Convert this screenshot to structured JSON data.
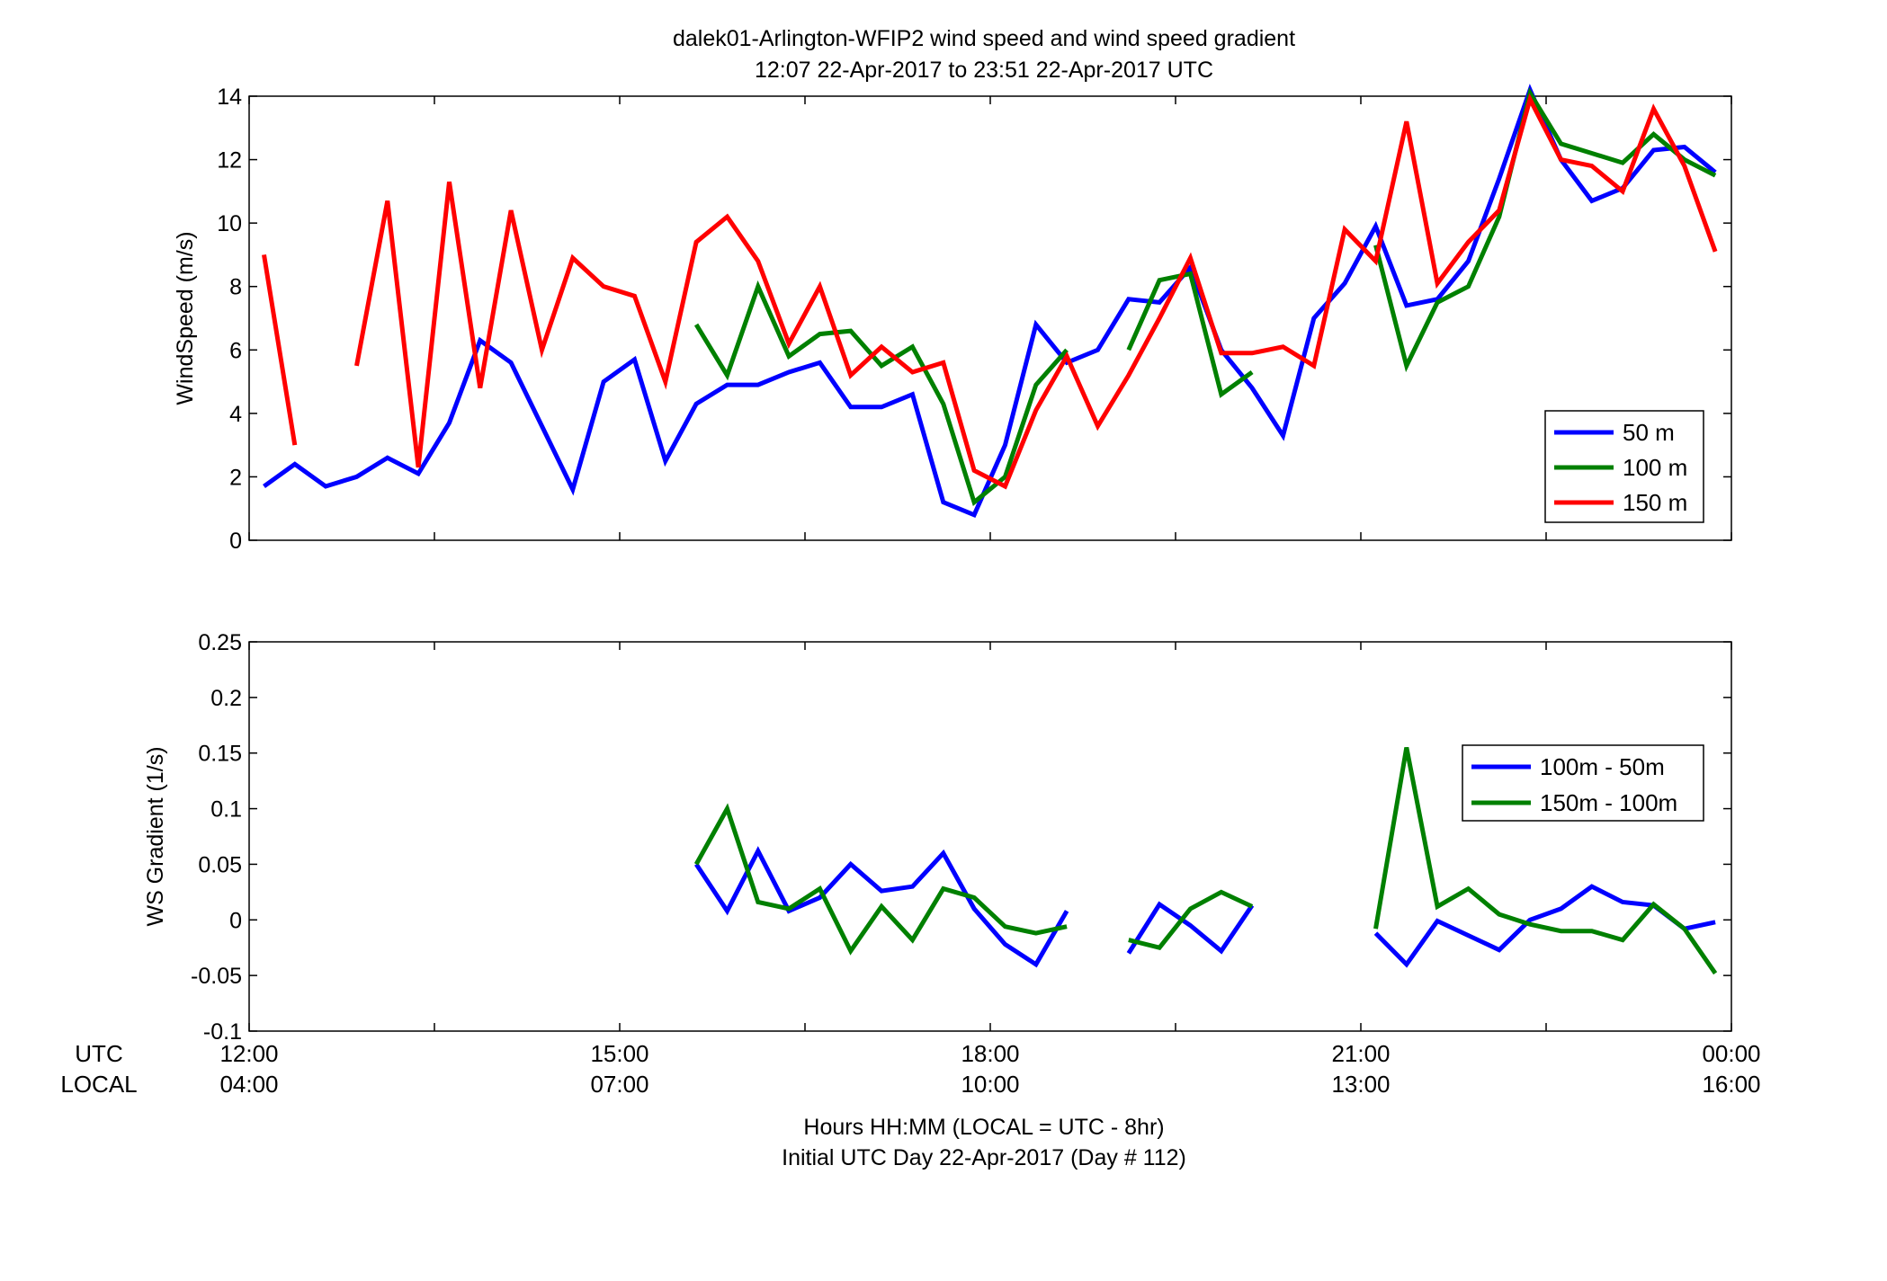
{
  "figure": {
    "title_line1": "dalek01-Arlington-WFIP2  wind speed and wind speed gradient",
    "title_line2": "12:07 22-Apr-2017 to 23:51 22-Apr-2017  UTC",
    "xlabel_line1": "Hours HH:MM  (LOCAL = UTC - 8hr)",
    "xlabel_line2": "Initial UTC Day 22-Apr-2017 (Day # 112)",
    "utc_label": "UTC",
    "local_label": "LOCAL",
    "utc_ticks": [
      "12:00",
      "15:00",
      "18:00",
      "21:00",
      "00:00"
    ],
    "local_ticks": [
      "04:00",
      "07:00",
      "10:00",
      "13:00",
      "16:00"
    ],
    "colors": {
      "blue": "#0000ff",
      "green": "#008000",
      "red": "#ff0000"
    }
  },
  "chart_data": [
    {
      "type": "line",
      "ylabel": "WindSpeed (m/s)",
      "xlim": [
        12,
        24
      ],
      "ylim": [
        0,
        14
      ],
      "yticks": [
        0,
        2,
        4,
        6,
        8,
        10,
        12,
        14
      ],
      "x_tick_hours": [
        12,
        15,
        18,
        21,
        24
      ],
      "legend_position": "bottom-right",
      "series": [
        {
          "name": "50 m",
          "color": "#0000ff",
          "points": [
            [
              12.12,
              1.7
            ],
            [
              12.37,
              2.4
            ],
            [
              12.62,
              1.7
            ],
            [
              12.87,
              2.0
            ],
            [
              13.12,
              2.6
            ],
            [
              13.37,
              2.1
            ],
            [
              13.62,
              3.7
            ],
            [
              13.87,
              6.3
            ],
            [
              14.12,
              5.6
            ],
            [
              14.37,
              3.6
            ],
            [
              14.62,
              1.6
            ],
            [
              14.87,
              5.0
            ],
            [
              15.12,
              5.7
            ],
            [
              15.37,
              2.5
            ],
            [
              15.62,
              4.3
            ],
            [
              15.87,
              4.9
            ],
            [
              16.12,
              4.9
            ],
            [
              16.37,
              5.3
            ],
            [
              16.62,
              5.6
            ],
            [
              16.87,
              4.2
            ],
            [
              17.12,
              4.2
            ],
            [
              17.37,
              4.6
            ],
            [
              17.62,
              1.2
            ],
            [
              17.87,
              0.8
            ],
            [
              18.12,
              3.0
            ],
            [
              18.37,
              6.8
            ],
            [
              18.62,
              5.6
            ],
            [
              18.87,
              6.0
            ],
            [
              19.12,
              7.6
            ],
            [
              19.37,
              7.5
            ],
            [
              19.62,
              8.6
            ],
            [
              19.87,
              6.0
            ],
            [
              20.12,
              4.8
            ],
            [
              20.37,
              3.3
            ],
            [
              20.62,
              7.0
            ],
            [
              20.87,
              8.1
            ],
            [
              21.12,
              9.9
            ],
            [
              21.37,
              7.4
            ],
            [
              21.62,
              7.6
            ],
            [
              21.87,
              8.8
            ],
            [
              22.12,
              11.4
            ],
            [
              22.37,
              14.2
            ],
            [
              22.62,
              12.0
            ],
            [
              22.87,
              10.7
            ],
            [
              23.12,
              11.1
            ],
            [
              23.37,
              12.3
            ],
            [
              23.62,
              12.4
            ],
            [
              23.87,
              11.6
            ]
          ]
        },
        {
          "name": "100 m",
          "color": "#008000",
          "points": [
            [
              15.62,
              6.8
            ],
            [
              15.87,
              5.2
            ],
            [
              16.12,
              8.0
            ],
            [
              16.37,
              5.8
            ],
            [
              16.62,
              6.5
            ],
            [
              16.87,
              6.6
            ],
            [
              17.12,
              5.5
            ],
            [
              17.37,
              6.1
            ],
            [
              17.62,
              4.3
            ],
            [
              17.87,
              1.2
            ],
            [
              18.12,
              2.0
            ],
            [
              18.37,
              4.9
            ],
            [
              18.62,
              6.0
            ],
            null,
            [
              19.12,
              6.0
            ],
            [
              19.37,
              8.2
            ],
            [
              19.62,
              8.4
            ],
            [
              19.87,
              4.6
            ],
            [
              20.12,
              5.3
            ],
            null,
            [
              21.12,
              9.3
            ],
            [
              21.37,
              5.5
            ],
            [
              21.62,
              7.5
            ],
            [
              21.87,
              8.0
            ],
            [
              22.12,
              10.2
            ],
            [
              22.37,
              14.1
            ],
            [
              22.62,
              12.5
            ],
            [
              22.87,
              12.2
            ],
            [
              23.12,
              11.9
            ],
            [
              23.37,
              12.8
            ],
            [
              23.62,
              12.0
            ],
            [
              23.87,
              11.5
            ]
          ]
        },
        {
          "name": "150 m",
          "color": "#ff0000",
          "points": [
            [
              12.12,
              9.0
            ],
            [
              12.37,
              3.0
            ],
            null,
            [
              12.87,
              5.5
            ],
            [
              13.12,
              10.7
            ],
            [
              13.37,
              2.3
            ],
            [
              13.62,
              11.3
            ],
            [
              13.87,
              4.8
            ],
            [
              14.12,
              10.4
            ],
            [
              14.37,
              6.0
            ],
            [
              14.62,
              8.9
            ],
            [
              14.87,
              8.0
            ],
            [
              15.12,
              7.7
            ],
            [
              15.37,
              5.0
            ],
            [
              15.62,
              9.4
            ],
            [
              15.87,
              10.2
            ],
            [
              16.12,
              8.8
            ],
            [
              16.37,
              6.2
            ],
            [
              16.62,
              8.0
            ],
            [
              16.87,
              5.2
            ],
            [
              17.12,
              6.1
            ],
            [
              17.37,
              5.3
            ],
            [
              17.62,
              5.6
            ],
            [
              17.87,
              2.2
            ],
            [
              18.12,
              1.7
            ],
            [
              18.37,
              4.1
            ],
            [
              18.62,
              5.8
            ],
            [
              18.87,
              3.6
            ],
            [
              19.12,
              5.2
            ],
            [
              19.37,
              7.0
            ],
            [
              19.62,
              8.9
            ],
            [
              19.87,
              5.9
            ],
            [
              20.12,
              5.9
            ],
            [
              20.37,
              6.1
            ],
            [
              20.62,
              5.5
            ],
            [
              20.87,
              9.8
            ],
            [
              21.12,
              8.8
            ],
            [
              21.37,
              13.2
            ],
            [
              21.62,
              8.1
            ],
            [
              21.87,
              9.4
            ],
            [
              22.12,
              10.4
            ],
            [
              22.37,
              13.9
            ],
            [
              22.62,
              12.0
            ],
            [
              22.87,
              11.8
            ],
            [
              23.12,
              11.0
            ],
            [
              23.37,
              13.6
            ],
            [
              23.62,
              11.8
            ],
            [
              23.87,
              9.1
            ]
          ]
        }
      ]
    },
    {
      "type": "line",
      "ylabel": "WS Gradient (1/s)",
      "xlim": [
        12,
        24
      ],
      "ylim": [
        -0.1,
        0.25
      ],
      "yticks": [
        -0.1,
        -0.05,
        0,
        0.05,
        0.1,
        0.15,
        0.2,
        0.25
      ],
      "ytick_labels": [
        "-0.1",
        "-0.05",
        "0",
        "0.05",
        "0.1",
        "0.15",
        "0.2",
        "0.25"
      ],
      "x_tick_hours": [
        12,
        15,
        18,
        21,
        24
      ],
      "legend_position": "upper-right",
      "series": [
        {
          "name": "100m - 50m",
          "color": "#0000ff",
          "points": [
            [
              15.62,
              0.05
            ],
            [
              15.87,
              0.008
            ],
            [
              16.12,
              0.062
            ],
            [
              16.37,
              0.008
            ],
            [
              16.62,
              0.02
            ],
            [
              16.87,
              0.05
            ],
            [
              17.12,
              0.026
            ],
            [
              17.37,
              0.03
            ],
            [
              17.62,
              0.06
            ],
            [
              17.87,
              0.01
            ],
            [
              18.12,
              -0.022
            ],
            [
              18.37,
              -0.04
            ],
            [
              18.62,
              0.008
            ],
            null,
            [
              19.12,
              -0.03
            ],
            [
              19.37,
              0.014
            ],
            [
              19.62,
              -0.005
            ],
            [
              19.87,
              -0.028
            ],
            [
              20.12,
              0.013
            ],
            null,
            [
              21.12,
              -0.012
            ],
            [
              21.37,
              -0.04
            ],
            [
              21.62,
              -0.001
            ],
            [
              21.87,
              -0.014
            ],
            [
              22.12,
              -0.027
            ],
            [
              22.37,
              0.0
            ],
            [
              22.62,
              0.01
            ],
            [
              22.87,
              0.03
            ],
            [
              23.12,
              0.016
            ],
            [
              23.37,
              0.013
            ],
            [
              23.62,
              -0.008
            ],
            [
              23.87,
              -0.002
            ]
          ]
        },
        {
          "name": "150m - 100m",
          "color": "#008000",
          "points": [
            [
              15.62,
              0.05
            ],
            [
              15.87,
              0.1
            ],
            [
              16.12,
              0.016
            ],
            [
              16.37,
              0.01
            ],
            [
              16.62,
              0.028
            ],
            [
              16.87,
              -0.028
            ],
            [
              17.12,
              0.012
            ],
            [
              17.37,
              -0.018
            ],
            [
              17.62,
              0.028
            ],
            [
              17.87,
              0.02
            ],
            [
              18.12,
              -0.006
            ],
            [
              18.37,
              -0.012
            ],
            [
              18.62,
              -0.006
            ],
            null,
            [
              19.12,
              -0.018
            ],
            [
              19.37,
              -0.025
            ],
            [
              19.62,
              0.01
            ],
            [
              19.87,
              0.025
            ],
            [
              20.12,
              0.012
            ],
            null,
            [
              21.12,
              -0.008
            ],
            [
              21.37,
              0.155
            ],
            [
              21.62,
              0.012
            ],
            [
              21.87,
              0.028
            ],
            [
              22.12,
              0.005
            ],
            [
              22.37,
              -0.004
            ],
            [
              22.62,
              -0.01
            ],
            [
              22.87,
              -0.01
            ],
            [
              23.12,
              -0.018
            ],
            [
              23.37,
              0.014
            ],
            [
              23.62,
              -0.008
            ],
            [
              23.87,
              -0.048
            ]
          ]
        }
      ]
    }
  ]
}
